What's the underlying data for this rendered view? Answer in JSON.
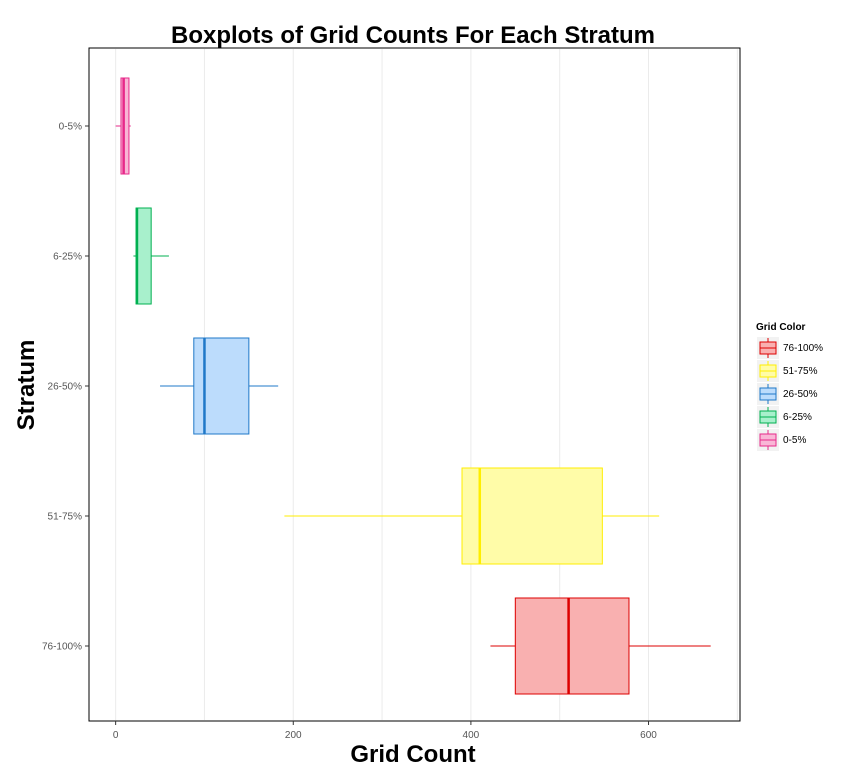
{
  "chart_data": {
    "type": "boxplot",
    "orientation": "horizontal",
    "title": "Boxplots of Grid Counts For Each Stratum",
    "xlabel": "Grid Count",
    "ylabel": "Stratum",
    "xlim": [
      -30,
      703
    ],
    "x_ticks": [
      0,
      200,
      400,
      600
    ],
    "x_tick_labels": [
      "0",
      "200",
      "400",
      "600"
    ],
    "grid": true,
    "legend_position": "right",
    "legend": {
      "title": "Grid Color",
      "entries": [
        "76-100%",
        "51-75%",
        "26-50%",
        "6-25%",
        "0-5%"
      ]
    },
    "categories": [
      "0-5%",
      "6-25%",
      "26-50%",
      "51-75%",
      "76-100%"
    ],
    "series": [
      {
        "category": "0-5%",
        "whisker_low": 0,
        "q1": 6,
        "median": 9,
        "q3": 15,
        "whisker_high": 17,
        "stroke": "#e7298a",
        "fill": "#f9b6d6"
      },
      {
        "category": "6-25%",
        "whisker_low": 20,
        "q1": 23,
        "median": 24,
        "q3": 40,
        "whisker_high": 60,
        "stroke": "#00b050",
        "fill": "#a8f0cc"
      },
      {
        "category": "26-50%",
        "whisker_low": 50,
        "q1": 88,
        "median": 100,
        "q3": 150,
        "whisker_high": 183,
        "stroke": "#1f78c8",
        "fill": "#bcdcfc"
      },
      {
        "category": "51-75%",
        "whisker_low": 190,
        "q1": 390,
        "median": 410,
        "q3": 548,
        "whisker_high": 612,
        "stroke": "#ffee00",
        "fill": "#fffca8"
      },
      {
        "category": "76-100%",
        "whisker_low": 422,
        "q1": 450,
        "median": 510,
        "q3": 578,
        "whisker_high": 670,
        "stroke": "#dd0000",
        "fill": "#f9b0b0"
      }
    ]
  }
}
